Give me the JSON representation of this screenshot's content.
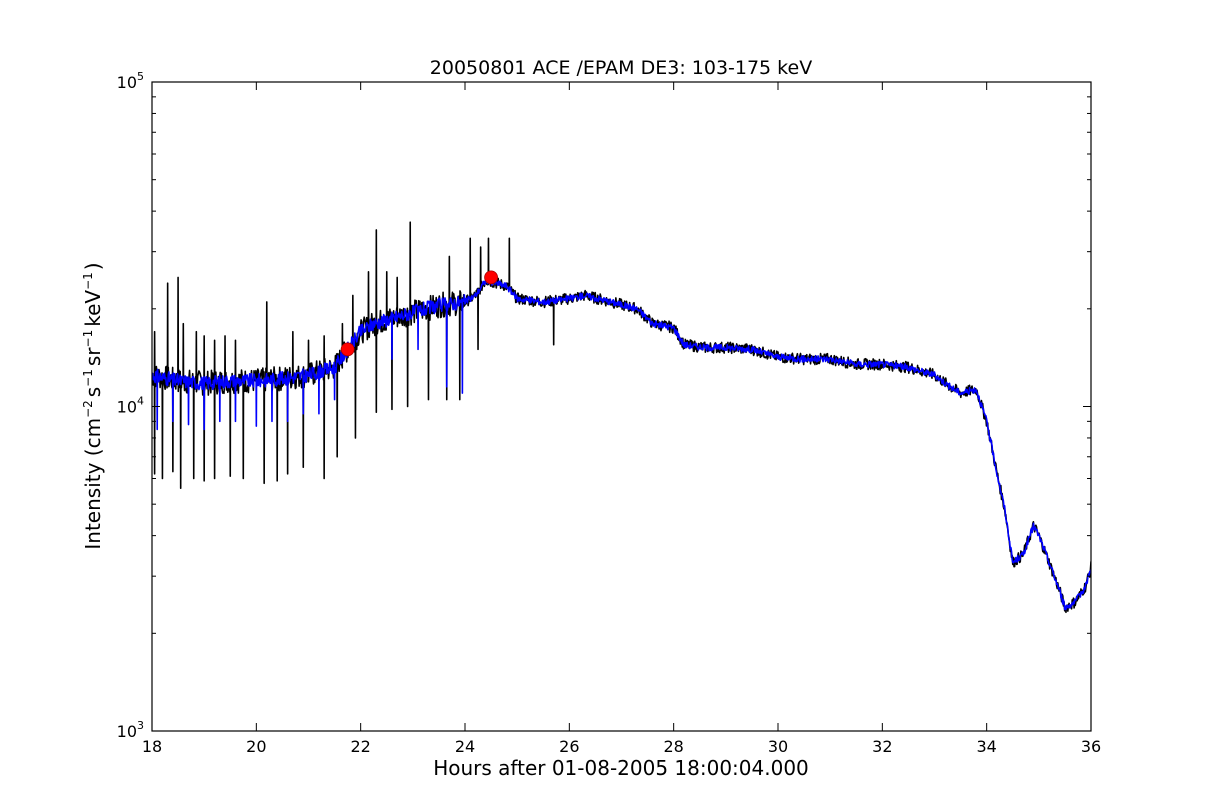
{
  "chart_data": {
    "type": "line",
    "title": "20050801 ACE /EPAM DE3: 103-175 keV",
    "xlabel": "Hours after 01-08-2005 18:00:04.000",
    "ylabel_parts": {
      "prefix": "Intensity (cm",
      "sup1": "−2",
      "mid1": "s",
      "sup2": "−1",
      "mid2": "sr",
      "sup3": "−1",
      "mid3": "keV",
      "sup4": "−1",
      "suffix": ")"
    },
    "xlim": [
      18,
      36
    ],
    "ylim": [
      1000,
      100000
    ],
    "yscale": "log",
    "x_ticks": [
      "18",
      "20",
      "22",
      "24",
      "26",
      "28",
      "30",
      "32",
      "34",
      "36"
    ],
    "y_ticks": [
      {
        "base": "10",
        "exp": "3",
        "value": 1000
      },
      {
        "base": "10",
        "exp": "4",
        "value": 10000
      },
      {
        "base": "10",
        "exp": "5",
        "value": 100000
      }
    ],
    "grid": false,
    "series": [
      {
        "color": "#000000",
        "role": "raw",
        "spikes_up": [
          [
            18.05,
            17000
          ],
          [
            18.3,
            24000
          ],
          [
            18.5,
            25000
          ],
          [
            18.6,
            18000
          ],
          [
            18.85,
            17000
          ],
          [
            19.0,
            16500
          ],
          [
            19.2,
            16000
          ],
          [
            19.4,
            16500
          ],
          [
            19.6,
            16000
          ],
          [
            20.2,
            21000
          ],
          [
            20.7,
            17000
          ],
          [
            21.0,
            16000
          ],
          [
            21.3,
            16500
          ],
          [
            21.65,
            18000
          ],
          [
            21.85,
            22000
          ],
          [
            22.15,
            26000
          ],
          [
            22.3,
            35000
          ],
          [
            22.5,
            26000
          ],
          [
            22.7,
            25000
          ],
          [
            22.95,
            37000
          ],
          [
            23.4,
            21000
          ],
          [
            23.7,
            29000
          ],
          [
            24.1,
            33000
          ],
          [
            24.3,
            31000
          ],
          [
            24.45,
            33000
          ],
          [
            24.85,
            33000
          ]
        ],
        "spikes_down": [
          [
            18.05,
            6200
          ],
          [
            18.2,
            6000
          ],
          [
            18.4,
            6300
          ],
          [
            18.55,
            5600
          ],
          [
            18.8,
            6000
          ],
          [
            19.0,
            5900
          ],
          [
            19.2,
            6000
          ],
          [
            19.5,
            6100
          ],
          [
            19.75,
            6000
          ],
          [
            20.15,
            5800
          ],
          [
            20.4,
            5900
          ],
          [
            20.6,
            6200
          ],
          [
            20.9,
            6500
          ],
          [
            21.3,
            6000
          ],
          [
            21.55,
            7000
          ],
          [
            21.9,
            8000
          ],
          [
            22.3,
            9600
          ],
          [
            22.6,
            9800
          ],
          [
            22.9,
            10000
          ],
          [
            23.3,
            10500
          ],
          [
            23.65,
            10500
          ],
          [
            23.9,
            10500
          ],
          [
            24.25,
            15000
          ],
          [
            25.7,
            15500
          ]
        ],
        "points": [
          [
            18.0,
            12500
          ],
          [
            18.5,
            12000
          ],
          [
            19.0,
            11800
          ],
          [
            19.5,
            12000
          ],
          [
            20.0,
            12000
          ],
          [
            20.5,
            12200
          ],
          [
            21.0,
            12500
          ],
          [
            21.5,
            13200
          ],
          [
            21.75,
            15000
          ],
          [
            22.0,
            17000
          ],
          [
            22.25,
            18000
          ],
          [
            22.5,
            18500
          ],
          [
            22.75,
            19000
          ],
          [
            23.0,
            19500
          ],
          [
            23.5,
            20500
          ],
          [
            24.0,
            21000
          ],
          [
            24.2,
            22000
          ],
          [
            24.4,
            24500
          ],
          [
            24.6,
            24000
          ],
          [
            24.8,
            23500
          ],
          [
            25.0,
            21500
          ],
          [
            25.5,
            21000
          ],
          [
            26.0,
            21500
          ],
          [
            26.3,
            22000
          ],
          [
            26.8,
            21000
          ],
          [
            27.3,
            20000
          ],
          [
            27.6,
            18000
          ],
          [
            28.0,
            17500
          ],
          [
            28.2,
            15500
          ],
          [
            28.6,
            15200
          ],
          [
            29.0,
            15200
          ],
          [
            29.5,
            15000
          ],
          [
            30.0,
            14200
          ],
          [
            30.5,
            14000
          ],
          [
            31.0,
            14000
          ],
          [
            31.5,
            13500
          ],
          [
            32.0,
            13500
          ],
          [
            32.5,
            13200
          ],
          [
            33.0,
            12500
          ],
          [
            33.3,
            11500
          ],
          [
            33.5,
            11000
          ],
          [
            33.8,
            11300
          ],
          [
            34.0,
            9000
          ],
          [
            34.2,
            6200
          ],
          [
            34.35,
            4800
          ],
          [
            34.5,
            3300
          ],
          [
            34.7,
            3500
          ],
          [
            34.9,
            4300
          ],
          [
            35.0,
            4000
          ],
          [
            35.2,
            3300
          ],
          [
            35.4,
            2700
          ],
          [
            35.5,
            2400
          ],
          [
            35.7,
            2500
          ],
          [
            35.9,
            2800
          ],
          [
            36.0,
            3200
          ]
        ]
      },
      {
        "color": "#0000ff",
        "role": "smoothed",
        "points": [
          [
            18.0,
            12500
          ],
          [
            18.5,
            12000
          ],
          [
            19.0,
            11800
          ],
          [
            19.5,
            12000
          ],
          [
            20.0,
            12000
          ],
          [
            20.5,
            12200
          ],
          [
            21.0,
            12500
          ],
          [
            21.5,
            13200
          ],
          [
            21.75,
            15000
          ],
          [
            22.0,
            17000
          ],
          [
            22.25,
            18000
          ],
          [
            22.5,
            18500
          ],
          [
            22.75,
            19000
          ],
          [
            23.0,
            19500
          ],
          [
            23.5,
            20500
          ],
          [
            24.0,
            21000
          ],
          [
            24.2,
            22000
          ],
          [
            24.4,
            24500
          ],
          [
            24.6,
            24000
          ],
          [
            24.8,
            23500
          ],
          [
            25.0,
            21500
          ],
          [
            25.5,
            21000
          ],
          [
            26.0,
            21500
          ],
          [
            26.3,
            22000
          ],
          [
            26.8,
            21000
          ],
          [
            27.3,
            20000
          ],
          [
            27.6,
            18000
          ],
          [
            28.0,
            17500
          ],
          [
            28.2,
            15500
          ],
          [
            28.6,
            15200
          ],
          [
            29.0,
            15200
          ],
          [
            29.5,
            15000
          ],
          [
            30.0,
            14200
          ],
          [
            30.5,
            14000
          ],
          [
            31.0,
            14000
          ],
          [
            31.5,
            13500
          ],
          [
            32.0,
            13500
          ],
          [
            32.5,
            13200
          ],
          [
            33.0,
            12500
          ],
          [
            33.3,
            11500
          ],
          [
            33.5,
            11000
          ],
          [
            33.8,
            11300
          ],
          [
            34.0,
            9000
          ],
          [
            34.2,
            6200
          ],
          [
            34.35,
            4800
          ],
          [
            34.5,
            3300
          ],
          [
            34.7,
            3500
          ],
          [
            34.9,
            4300
          ],
          [
            35.0,
            4000
          ],
          [
            35.2,
            3300
          ],
          [
            35.4,
            2700
          ],
          [
            35.5,
            2400
          ],
          [
            35.7,
            2500
          ],
          [
            35.9,
            2800
          ],
          [
            36.0,
            3200
          ]
        ],
        "dips": [
          [
            18.1,
            8500
          ],
          [
            18.4,
            9000
          ],
          [
            18.7,
            8800
          ],
          [
            19.0,
            8500
          ],
          [
            19.3,
            9000
          ],
          [
            19.6,
            9000
          ],
          [
            20.0,
            8700
          ],
          [
            20.3,
            9000
          ],
          [
            20.6,
            9000
          ],
          [
            20.9,
            9500
          ],
          [
            21.2,
            9500
          ],
          [
            21.5,
            10500
          ],
          [
            22.6,
            14000
          ],
          [
            23.1,
            15000
          ],
          [
            23.65,
            11500
          ],
          [
            23.95,
            11000
          ]
        ]
      },
      {
        "color": "#ff0000",
        "role": "markers",
        "points": [
          [
            21.75,
            15000
          ],
          [
            24.5,
            25000
          ]
        ]
      }
    ]
  }
}
